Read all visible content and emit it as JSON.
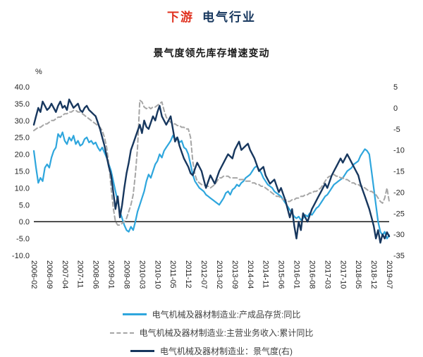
{
  "header": {
    "title_part1": "下游",
    "title_part2": "电气行业",
    "subtitle": "景气度领先库存增速变动"
  },
  "colors": {
    "title_red": "#e0301e",
    "navy": "#17375e",
    "blue": "#2ea6dd",
    "gray": "#a6a6a6",
    "zero_line": "#000000"
  },
  "chart_data": {
    "type": "line",
    "title": "景气度领先库存增速变动",
    "grid": false,
    "legend_position": "bottom",
    "x_start": "2006-02",
    "x_count": 162,
    "x_tick_step_months": 7,
    "x_label_rotation": 90,
    "x_labels": [
      "2006-02",
      "2006-09",
      "2007-04",
      "2007-11",
      "2008-06",
      "2009-01",
      "2009-08",
      "2010-03",
      "2010-10",
      "2011-05",
      "2011-12",
      "2012-07",
      "2013-02",
      "2013-09",
      "2014-04",
      "2014-11",
      "2015-06",
      "2016-01",
      "2016-08",
      "2017-03",
      "2017-10",
      "2018-05",
      "2018-12",
      "2019-07"
    ],
    "left_axis": {
      "unit": "%",
      "max": 40,
      "min": -10,
      "step": 5,
      "ticks": [
        "40.0",
        "35.0",
        "30.0",
        "25.0",
        "20.0",
        "15.0",
        "10.0",
        "5.0",
        "0.0",
        "-5.0",
        "-10.0"
      ]
    },
    "right_axis": {
      "max": 5,
      "min": -35,
      "step": 5,
      "ticks": [
        "5",
        "0",
        "-5",
        "-10",
        "-15",
        "-20",
        "-25",
        "-30",
        "-35"
      ]
    },
    "series": [
      {
        "name": "电气机械及器材制造业:产成品存货:同比",
        "axis": "left",
        "color": "blue",
        "style": "solid",
        "width": 2.2,
        "values": [
          21,
          16,
          11.5,
          13,
          12,
          16,
          17,
          16,
          19,
          21,
          22,
          26,
          25,
          26.5,
          24,
          23,
          25,
          24,
          25.5,
          23,
          24,
          22.5,
          23,
          24.5,
          25,
          23.5,
          24,
          23,
          23.5,
          22,
          21,
          22,
          20.5,
          19,
          17,
          15,
          12,
          9,
          6,
          3,
          1,
          -1,
          -2.5,
          -3,
          -1.5,
          -2.5,
          0,
          3,
          5,
          7,
          9,
          12,
          14,
          13,
          15,
          17,
          18,
          20,
          19,
          21,
          22,
          23,
          24,
          25.5,
          24.5,
          25,
          23.5,
          24,
          22,
          21.5,
          20,
          17,
          14,
          12,
          11,
          10,
          9.5,
          9,
          8,
          7.5,
          7,
          6.5,
          6,
          5.5,
          5,
          6,
          7,
          8.5,
          9,
          8,
          9.5,
          10,
          11,
          10.5,
          11.5,
          12,
          13,
          13.5,
          14,
          15,
          16,
          16.5,
          15.5,
          14.5,
          13,
          12,
          11,
          10.5,
          10,
          9,
          8.5,
          8,
          7.5,
          6.5,
          5.5,
          4.5,
          3.5,
          2.5,
          1.5,
          1,
          1.5,
          0.5,
          1,
          2,
          1.5,
          2.5,
          2,
          3,
          4,
          4.5,
          5.5,
          6.5,
          7.5,
          8,
          9,
          10,
          11,
          11.5,
          12,
          12.5,
          13,
          14,
          15,
          15.5,
          16,
          17,
          17.5,
          18,
          19.5,
          20.5,
          21.5,
          21,
          20,
          15,
          10,
          5,
          0,
          -3,
          -4,
          -3,
          -5,
          -4
        ]
      },
      {
        "name": "电气机械及器材制造业:主营业务收入:累计同比",
        "axis": "left",
        "color": "gray",
        "style": "dashed",
        "dash": "6 4",
        "width": 2,
        "values": [
          27,
          27.5,
          28,
          28,
          28.5,
          29,
          29,
          29.5,
          30,
          30,
          30.5,
          31,
          31,
          31.5,
          32,
          32,
          32.5,
          32.5,
          33,
          33,
          32.5,
          32.5,
          32,
          31.5,
          31,
          30.5,
          30,
          29.5,
          29,
          28.5,
          28,
          27,
          25,
          22,
          17,
          10,
          4,
          0,
          -1,
          -1,
          -0.5,
          0,
          1,
          3,
          5,
          8,
          14,
          22,
          36,
          35.5,
          34,
          33.5,
          34,
          33.5,
          34,
          34,
          34.5,
          35,
          35.5,
          33,
          31,
          30,
          29.5,
          29,
          29,
          28.5,
          28.5,
          28,
          28,
          27.5,
          27.5,
          25,
          18,
          14,
          12,
          11.5,
          11,
          11,
          10.5,
          10.5,
          10,
          10.5,
          11,
          12,
          13,
          13,
          13.5,
          13.5,
          13.5,
          13,
          13,
          13,
          13,
          12.5,
          12.5,
          12.5,
          12,
          12,
          12,
          11.5,
          11.5,
          11,
          11,
          10.5,
          10.5,
          10,
          9.5,
          9,
          8.5,
          8,
          7.5,
          7.5,
          7,
          6.5,
          6.5,
          6,
          6,
          6.5,
          6.5,
          7,
          7,
          7.5,
          7.5,
          8,
          8,
          8.5,
          8.5,
          9,
          9,
          9.5,
          10,
          11,
          12,
          13,
          13.5,
          13.5,
          14,
          13.5,
          13.5,
          13,
          13,
          12.5,
          12.5,
          12,
          11.5,
          11.5,
          11,
          11,
          10.5,
          10.5,
          10,
          9.5,
          9,
          9,
          8.5,
          8,
          7,
          6,
          5.5,
          7,
          10,
          6
        ]
      },
      {
        "name": "电气机械及器材制造业：景气度(右)",
        "axis": "right",
        "color": "navy",
        "style": "solid",
        "width": 2.4,
        "values": [
          -4,
          -2,
          0,
          -1,
          1.5,
          0.5,
          -0.5,
          0,
          1,
          0,
          -1,
          0.5,
          1.5,
          0,
          0.5,
          -0.5,
          2,
          1,
          0,
          0.5,
          1,
          -0.5,
          -1,
          0,
          0.5,
          -0.5,
          -1,
          -1.5,
          -2,
          -3.5,
          -5,
          -7,
          -9,
          -11.5,
          -14,
          -16,
          -20,
          -24,
          -21,
          -26,
          -23,
          -19,
          -15.5,
          -13,
          -10,
          -8.5,
          -7,
          -5.5,
          -4,
          -6,
          -3,
          -4.5,
          -5,
          -3.5,
          -2,
          -3,
          -1,
          0.5,
          -2,
          -3,
          -4,
          -3,
          -2,
          -5,
          -8,
          -7,
          -9,
          -10.5,
          -12,
          -13,
          -14,
          -15.5,
          -16,
          -14.5,
          -13,
          -14,
          -15,
          -17,
          -19,
          -17.5,
          -16,
          -17,
          -18,
          -16.5,
          -15,
          -14,
          -13,
          -12,
          -11,
          -11.5,
          -12,
          -10,
          -9,
          -8,
          -10,
          -9.5,
          -9,
          -8.5,
          -10,
          -11,
          -12,
          -13.5,
          -15,
          -14.5,
          -14,
          -16,
          -17,
          -18,
          -17.5,
          -17,
          -18.5,
          -20,
          -19,
          -20.5,
          -22,
          -24,
          -26,
          -24,
          -28,
          -31,
          -27,
          -29,
          -25,
          -26,
          -27,
          -25.5,
          -24,
          -23,
          -22,
          -21,
          -20,
          -19,
          -18,
          -19,
          -17.5,
          -16,
          -15,
          -14,
          -13,
          -12,
          -13,
          -12,
          -11,
          -12,
          -13,
          -14,
          -15,
          -16,
          -18,
          -19.5,
          -21,
          -22.5,
          -24,
          -26,
          -28,
          -31,
          -29,
          -32,
          -30,
          -31,
          -29.5,
          -30.5
        ]
      }
    ]
  }
}
